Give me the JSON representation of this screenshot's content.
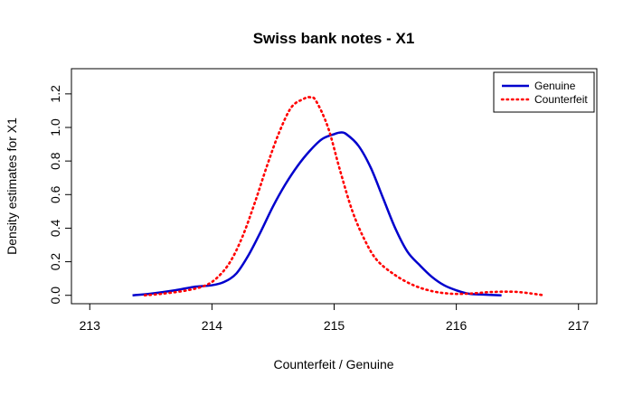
{
  "chart_data": {
    "type": "line",
    "title": "Swiss bank notes - X1",
    "xlabel": "Counterfeit / Genuine",
    "ylabel": "Density estimates for X1",
    "xlim": [
      212.85,
      217.15
    ],
    "ylim": [
      -0.05,
      1.35
    ],
    "xticks": [
      213,
      214,
      215,
      216,
      217
    ],
    "yticks": [
      0.0,
      0.2,
      0.4,
      0.6,
      0.8,
      1.0,
      1.2
    ],
    "xtick_labels": [
      "213",
      "214",
      "215",
      "216",
      "217"
    ],
    "ytick_labels": [
      "0.0",
      "0.2",
      "0.4",
      "0.6",
      "0.8",
      "1.0",
      "1.2"
    ],
    "legend_position": "top-right",
    "grid": false,
    "series": [
      {
        "name": "Genuine",
        "color": "#0000cd",
        "style": "solid",
        "x": [
          213.35,
          213.5,
          213.7,
          213.85,
          214.0,
          214.1,
          214.2,
          214.3,
          214.4,
          214.5,
          214.6,
          214.7,
          214.8,
          214.9,
          215.0,
          215.05,
          215.1,
          215.2,
          215.3,
          215.4,
          215.5,
          215.6,
          215.7,
          215.8,
          215.9,
          216.0,
          216.1,
          216.2,
          216.37
        ],
        "y": [
          0.0,
          0.01,
          0.03,
          0.05,
          0.06,
          0.08,
          0.13,
          0.24,
          0.38,
          0.53,
          0.66,
          0.77,
          0.86,
          0.93,
          0.96,
          0.97,
          0.96,
          0.89,
          0.76,
          0.58,
          0.4,
          0.26,
          0.18,
          0.11,
          0.06,
          0.03,
          0.01,
          0.005,
          0.0
        ]
      },
      {
        "name": "Counterfeit",
        "color": "#ff0000",
        "style": "dotted",
        "x": [
          213.45,
          213.6,
          213.8,
          213.95,
          214.05,
          214.15,
          214.25,
          214.35,
          214.45,
          214.55,
          214.65,
          214.75,
          214.8,
          214.85,
          214.95,
          215.05,
          215.15,
          215.25,
          215.35,
          215.5,
          215.65,
          215.8,
          215.95,
          216.1,
          216.3,
          216.5,
          216.72
        ],
        "y": [
          0.0,
          0.01,
          0.03,
          0.06,
          0.11,
          0.2,
          0.35,
          0.55,
          0.77,
          0.97,
          1.12,
          1.17,
          1.18,
          1.16,
          1.0,
          0.74,
          0.5,
          0.33,
          0.21,
          0.12,
          0.06,
          0.025,
          0.01,
          0.01,
          0.02,
          0.02,
          0.0
        ]
      }
    ]
  }
}
